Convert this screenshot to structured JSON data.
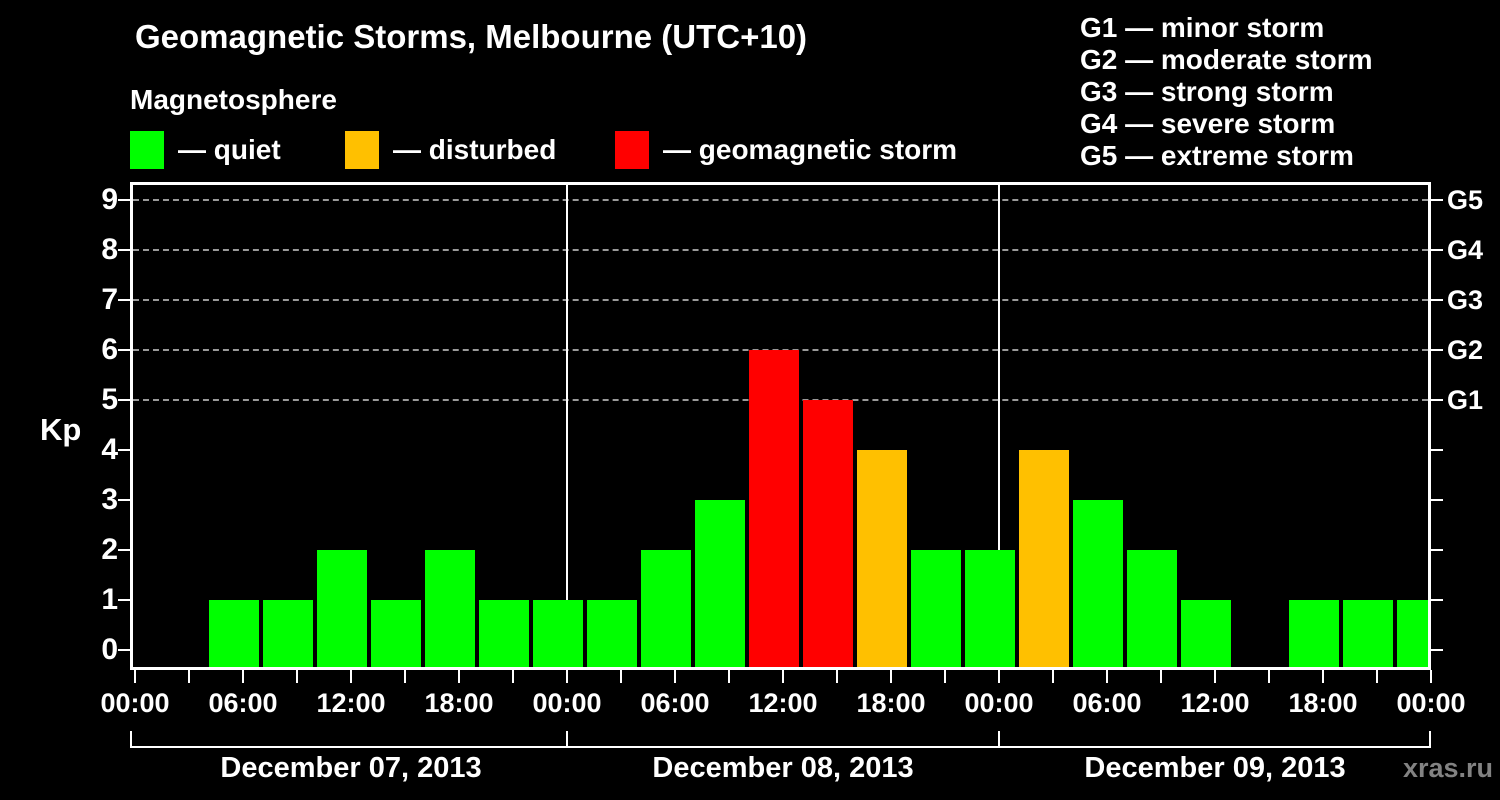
{
  "header": {
    "title": "Geomagnetic Storms, Melbourne (UTC+10)",
    "subtitle": "Magnetosphere",
    "legend": [
      {
        "label": "— quiet",
        "status": "quiet"
      },
      {
        "label": "— disturbed",
        "status": "disturbed"
      },
      {
        "label": "— geomagnetic storm",
        "status": "storm"
      }
    ],
    "storm_scale": [
      {
        "code": "G1",
        "description": "minor storm"
      },
      {
        "code": "G2",
        "description": "moderate storm"
      },
      {
        "code": "G3",
        "description": "strong storm"
      },
      {
        "code": "G4",
        "description": "severe storm"
      },
      {
        "code": "G5",
        "description": "extreme storm"
      }
    ]
  },
  "colors": {
    "background": "#000000",
    "text": "#ffffff",
    "quiet": "#00ff00",
    "disturbed": "#ffc000",
    "storm": "#ff0000",
    "grid": "#999999",
    "watermark": "#828282"
  },
  "chart_data": {
    "type": "bar",
    "title": "Geomagnetic Storms, Melbourne (UTC+10)",
    "subtitle": "Magnetosphere",
    "ylabel": "Kp",
    "ylim": [
      0,
      9
    ],
    "yticks": [
      0,
      1,
      2,
      3,
      4,
      5,
      6,
      7,
      8,
      9
    ],
    "grid_kp_levels": [
      5,
      6,
      7,
      8,
      9
    ],
    "grid_style": "dashed",
    "right_axis": [
      {
        "kp": 5,
        "label": "G1"
      },
      {
        "kp": 6,
        "label": "G2"
      },
      {
        "kp": 7,
        "label": "G3"
      },
      {
        "kp": 8,
        "label": "G4"
      },
      {
        "kp": 9,
        "label": "G5"
      }
    ],
    "x_tick_labels": [
      "00:00",
      "06:00",
      "12:00",
      "18:00",
      "00:00",
      "06:00",
      "12:00",
      "18:00",
      "00:00",
      "06:00",
      "12:00",
      "18:00",
      "00:00"
    ],
    "bar_interval_hours": 3,
    "timezone": "UTC+10",
    "days": [
      {
        "date": "December 07, 2013",
        "bars": [
          {
            "start": "01:00",
            "end": "04:00",
            "kp": 0,
            "status": "none"
          },
          {
            "start": "04:00",
            "end": "07:00",
            "kp": 1,
            "status": "quiet"
          },
          {
            "start": "07:00",
            "end": "10:00",
            "kp": 1,
            "status": "quiet"
          },
          {
            "start": "10:00",
            "end": "13:00",
            "kp": 2,
            "status": "quiet"
          },
          {
            "start": "13:00",
            "end": "16:00",
            "kp": 1,
            "status": "quiet"
          },
          {
            "start": "16:00",
            "end": "19:00",
            "kp": 2,
            "status": "quiet"
          },
          {
            "start": "19:00",
            "end": "22:00",
            "kp": 1,
            "status": "quiet"
          },
          {
            "start": "22:00",
            "end": "01:00",
            "kp": 1,
            "status": "quiet"
          }
        ]
      },
      {
        "date": "December 08, 2013",
        "bars": [
          {
            "start": "01:00",
            "end": "04:00",
            "kp": 1,
            "status": "quiet"
          },
          {
            "start": "04:00",
            "end": "07:00",
            "kp": 2,
            "status": "quiet"
          },
          {
            "start": "07:00",
            "end": "10:00",
            "kp": 3,
            "status": "quiet"
          },
          {
            "start": "10:00",
            "end": "13:00",
            "kp": 6,
            "status": "storm"
          },
          {
            "start": "13:00",
            "end": "16:00",
            "kp": 5,
            "status": "storm"
          },
          {
            "start": "16:00",
            "end": "19:00",
            "kp": 4,
            "status": "disturbed"
          },
          {
            "start": "19:00",
            "end": "22:00",
            "kp": 2,
            "status": "quiet"
          },
          {
            "start": "22:00",
            "end": "01:00",
            "kp": 2,
            "status": "quiet"
          }
        ]
      },
      {
        "date": "December 09, 2013",
        "bars": [
          {
            "start": "01:00",
            "end": "04:00",
            "kp": 4,
            "status": "disturbed"
          },
          {
            "start": "04:00",
            "end": "07:00",
            "kp": 3,
            "status": "quiet"
          },
          {
            "start": "07:00",
            "end": "10:00",
            "kp": 2,
            "status": "quiet"
          },
          {
            "start": "10:00",
            "end": "13:00",
            "kp": 1,
            "status": "quiet"
          },
          {
            "start": "13:00",
            "end": "16:00",
            "kp": 0,
            "status": "none"
          },
          {
            "start": "16:00",
            "end": "19:00",
            "kp": 1,
            "status": "quiet"
          },
          {
            "start": "19:00",
            "end": "22:00",
            "kp": 1,
            "status": "quiet"
          },
          {
            "start": "22:00",
            "end": "01:00",
            "kp": 1,
            "status": "quiet"
          }
        ]
      }
    ]
  },
  "watermark": "xras.ru"
}
